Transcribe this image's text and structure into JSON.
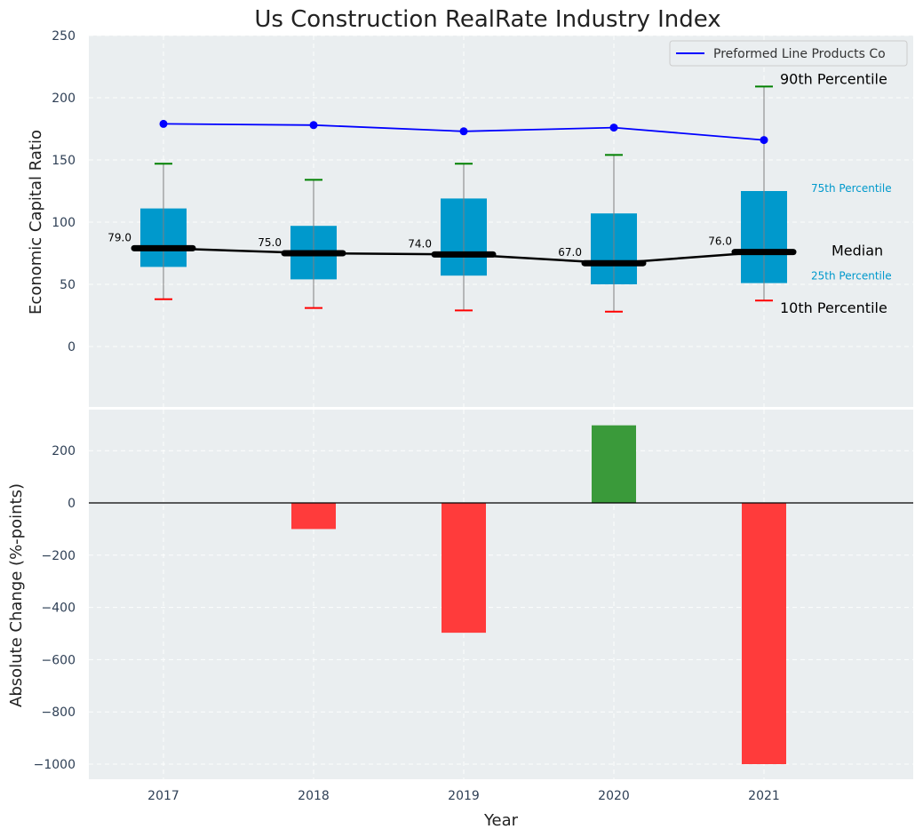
{
  "chart_data": [
    {
      "type": "box",
      "title": "Us Construction RealRate Industry Index",
      "xlabel": "",
      "ylabel": "Economic Capital Ratio",
      "ylim": [
        -50,
        250
      ],
      "yticks": [
        0,
        50,
        100,
        150,
        200,
        250
      ],
      "grid": true,
      "categories": [
        "2017",
        "2018",
        "2019",
        "2020",
        "2021"
      ],
      "boxes": [
        {
          "year": "2017",
          "p10": 38,
          "p25": 64,
          "median": 79,
          "p75": 111,
          "p90": 147
        },
        {
          "year": "2018",
          "p10": 31,
          "p25": 54,
          "median": 75,
          "p75": 97,
          "p90": 134
        },
        {
          "year": "2019",
          "p10": 29,
          "p25": 57,
          "median": 74,
          "p75": 119,
          "p90": 147
        },
        {
          "year": "2020",
          "p10": 28,
          "p25": 50,
          "median": 67,
          "p75": 107,
          "p90": 154
        },
        {
          "year": "2021",
          "p10": 37,
          "p25": 51,
          "median": 76,
          "p75": 125,
          "p90": 209
        }
      ],
      "median_labels": [
        "79.0",
        "75.0",
        "74.0",
        "67.0",
        "76.0"
      ],
      "series": [
        {
          "name": "Preformed Line Products Co",
          "color": "#0000ff",
          "values": [
            179,
            178,
            173,
            176,
            166
          ]
        }
      ],
      "legend": {
        "position": "top-right",
        "entries": [
          "Preformed Line Products Co"
        ]
      },
      "annotations": {
        "p90": "90th Percentile",
        "p75": "75th Percentile",
        "median": "Median",
        "p25": "25th Percentile",
        "p10": "10th Percentile"
      },
      "colors": {
        "box": "#0099cc",
        "median": "#000000",
        "p90_cap": "#008000",
        "p10_cap": "#ff0000",
        "whisker": "#808080",
        "background": "#eaeef0",
        "percentile_label": "#0099cc"
      }
    },
    {
      "type": "bar",
      "xlabel": "Year",
      "ylabel": "Absolute Change (%-points)",
      "ylim": [
        -1060,
        370
      ],
      "yticks": [
        -1000,
        -800,
        -600,
        -400,
        -200,
        0,
        200
      ],
      "grid": true,
      "categories": [
        "2017",
        "2018",
        "2019",
        "2020",
        "2021"
      ],
      "values": [
        0,
        -100,
        -497,
        297,
        -1000
      ],
      "colors": {
        "positive": "#3a9a3a",
        "negative": "#ff3b3b",
        "zero_line": "#000000"
      }
    }
  ]
}
